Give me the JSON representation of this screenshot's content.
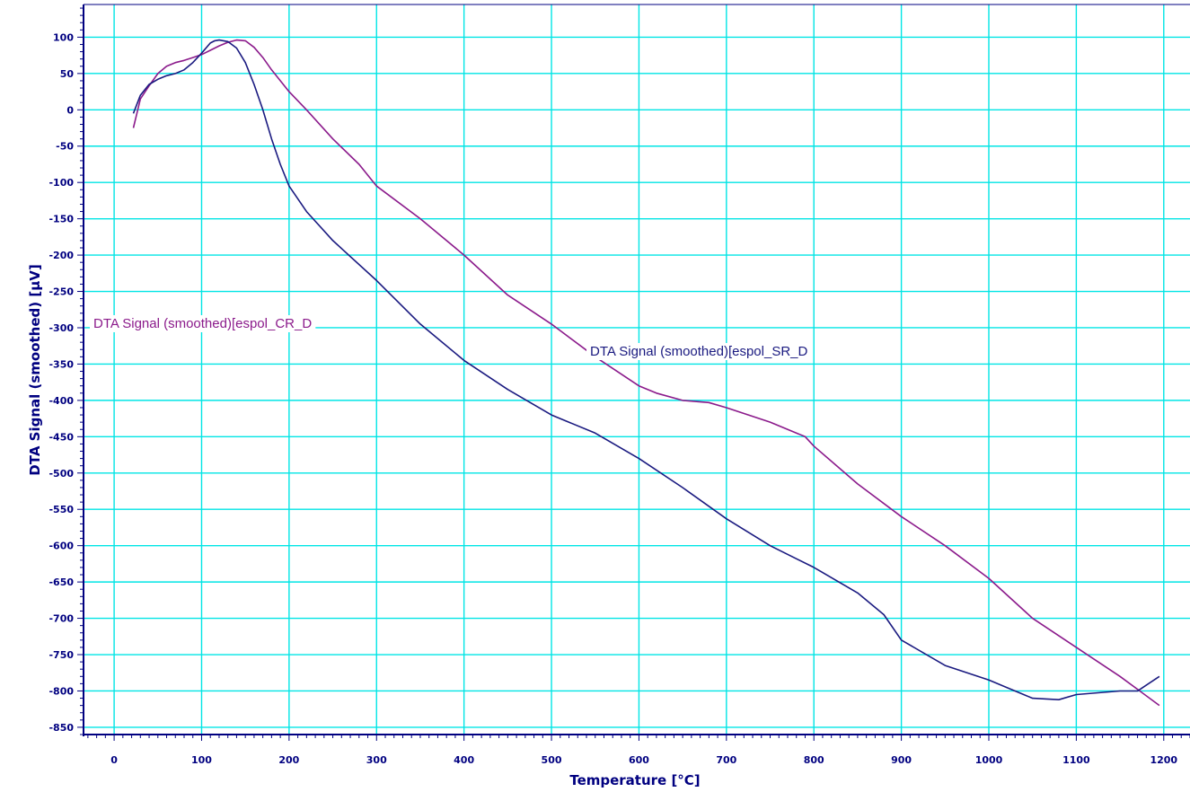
{
  "chart_data": {
    "type": "line",
    "xlabel": "Temperature  [°C]",
    "ylabel": "DTA Signal (smoothed)  [µV]",
    "xlim": [
      -35,
      1230
    ],
    "ylim": [
      -860,
      145
    ],
    "xticks": [
      0,
      100,
      200,
      300,
      400,
      500,
      600,
      700,
      800,
      900,
      1000,
      1100,
      1200
    ],
    "yticks": [
      100,
      50,
      0,
      -50,
      -100,
      -150,
      -200,
      -250,
      -300,
      -350,
      -400,
      -450,
      -500,
      -550,
      -600,
      -650,
      -700,
      -750,
      -800,
      -850
    ],
    "grid": true,
    "colors": {
      "grid": "#00e5e5",
      "axis": "#000080",
      "cr": "#8b1a8b",
      "sr": "#1a1a80"
    },
    "series": [
      {
        "name": "DTA Signal (smoothed)[espol_CR_D",
        "color": "#8b1a8b",
        "x": [
          22,
          30,
          40,
          50,
          60,
          70,
          80,
          90,
          100,
          110,
          120,
          130,
          140,
          150,
          160,
          170,
          180,
          190,
          200,
          220,
          250,
          280,
          300,
          350,
          400,
          450,
          500,
          550,
          600,
          620,
          650,
          680,
          700,
          750,
          790,
          800,
          850,
          900,
          950,
          1000,
          1050,
          1100,
          1150,
          1195
        ],
        "y": [
          -25,
          15,
          33,
          50,
          60,
          65,
          68,
          72,
          76,
          82,
          88,
          93,
          96,
          95,
          86,
          72,
          55,
          40,
          25,
          0,
          -40,
          -75,
          -105,
          -150,
          -200,
          -255,
          -295,
          -340,
          -380,
          -390,
          -400,
          -403,
          -410,
          -430,
          -450,
          -463,
          -515,
          -560,
          -600,
          -645,
          -700,
          -740,
          -780,
          -820
        ]
      },
      {
        "name": "DTA Signal (smoothed)[espol_SR_D",
        "color": "#1a1a80",
        "x": [
          22,
          30,
          40,
          50,
          60,
          70,
          80,
          90,
          100,
          110,
          115,
          120,
          130,
          140,
          150,
          160,
          170,
          180,
          190,
          200,
          220,
          250,
          300,
          350,
          400,
          450,
          500,
          550,
          600,
          650,
          700,
          750,
          800,
          850,
          880,
          900,
          950,
          1000,
          1050,
          1080,
          1100,
          1150,
          1170,
          1195
        ],
        "y": [
          -5,
          20,
          35,
          42,
          47,
          50,
          55,
          65,
          78,
          92,
          95,
          96,
          94,
          85,
          65,
          35,
          0,
          -40,
          -75,
          -105,
          -140,
          -180,
          -235,
          -295,
          -345,
          -385,
          -420,
          -445,
          -480,
          -520,
          -563,
          -600,
          -630,
          -665,
          -695,
          -730,
          -765,
          -785,
          -810,
          -812,
          -805,
          -800,
          -800,
          -780
        ]
      }
    ],
    "annotations": [
      {
        "text": "DTA Signal (smoothed)[espol_CR_D",
        "series": 0
      },
      {
        "text": "DTA Signal (smoothed)[espol_SR_D",
        "series": 1
      }
    ]
  }
}
